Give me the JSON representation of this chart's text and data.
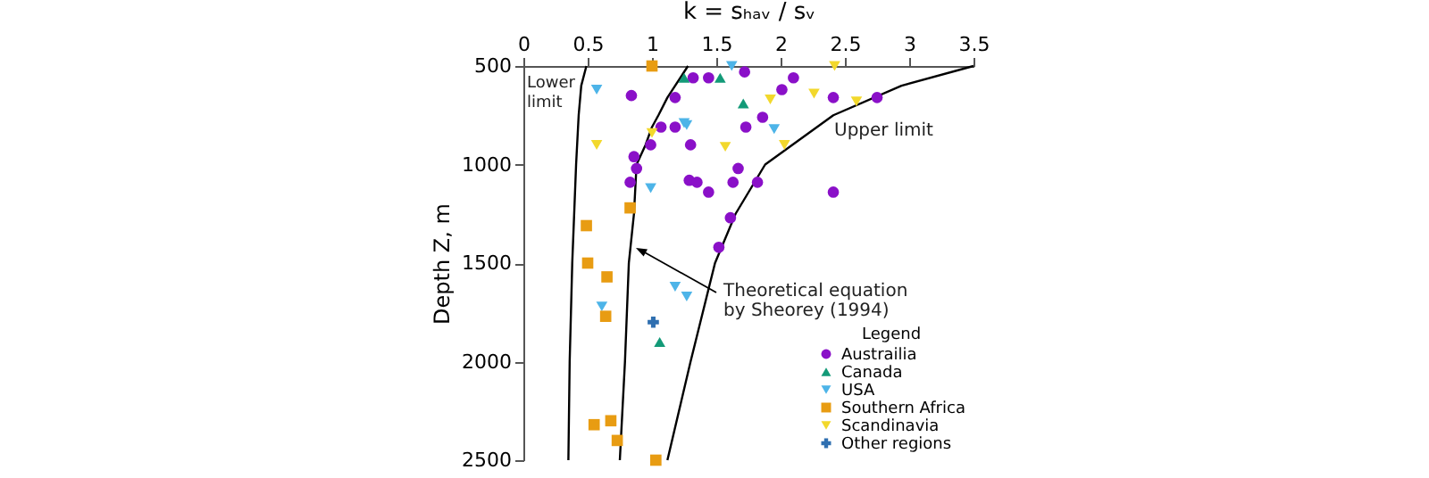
{
  "chart_data": {
    "type": "scatter",
    "xlabel": "k =  sₕₐᵥ / sᵥ",
    "ylabel": "Depth Z, m",
    "legend_title": "Legend",
    "xlim": [
      0,
      3.5
    ],
    "xticks": [
      0,
      0.5,
      1,
      1.5,
      2,
      2.5,
      3,
      3.5
    ],
    "ylim": [
      2500,
      500
    ],
    "yticks": [
      500,
      1000,
      1500,
      2000,
      2500
    ],
    "grid": false,
    "legend": "bottom right",
    "annotations": [
      "Lower\nlimit",
      "Upper limit",
      "Theoretical equation\nby Sheorey (1994)"
    ],
    "series": [
      {
        "name": "Austrailia",
        "color": "#8a10c8",
        "marker": "circle",
        "x": [
          1.32,
          1.44,
          1.72,
          2.1,
          2.01,
          2.41,
          2.75,
          0.84,
          1.18,
          1.86,
          1.07,
          1.18,
          1.73,
          0.99,
          1.3,
          0.86,
          0.88,
          1.67,
          0.83,
          1.29,
          1.35,
          1.63,
          1.82,
          1.44,
          2.41,
          1.61,
          1.52
        ],
        "values": [
          560,
          560,
          530,
          560,
          620,
          660,
          660,
          650,
          660,
          760,
          810,
          810,
          810,
          900,
          900,
          960,
          1020,
          1020,
          1090,
          1080,
          1090,
          1090,
          1090,
          1140,
          1140,
          1270,
          1420
        ]
      },
      {
        "name": "Canada",
        "color": "#139a78",
        "marker": "triangle",
        "x": [
          1.25,
          1.53,
          1.71,
          1.06
        ],
        "values": [
          560,
          560,
          690,
          1900
        ]
      },
      {
        "name": "USA",
        "color": "#4db4e8",
        "marker": "triangle-down",
        "x": [
          1.62,
          0.57,
          1.25,
          1.27,
          1.95,
          0.99,
          1.18,
          1.27,
          0.61
        ],
        "values": [
          500,
          620,
          790,
          800,
          820,
          1120,
          1620,
          1670,
          1720
        ]
      },
      {
        "name": "Southern Africa",
        "color": "#e89c12",
        "marker": "square",
        "x": [
          1.0,
          0.83,
          0.49,
          0.5,
          0.65,
          0.64,
          0.55,
          0.68,
          0.73,
          1.03
        ],
        "values": [
          500,
          1220,
          1310,
          1500,
          1570,
          1770,
          2320,
          2300,
          2400,
          2500
        ]
      },
      {
        "name": "Scandinavia",
        "color": "#f2d82c",
        "marker": "triangle-down",
        "x": [
          2.42,
          0.57,
          1.0,
          1.57,
          2.03,
          1.92,
          2.26,
          2.59
        ],
        "values": [
          500,
          900,
          840,
          910,
          900,
          670,
          640,
          680
        ]
      },
      {
        "name": "Other regions",
        "color": "#2f6fb0",
        "marker": "cross",
        "x": [
          1.01
        ],
        "values": [
          1800
        ]
      },
      {
        "type": "line",
        "color": "#000000",
        "x": [
          0.49,
          0.45,
          0.43,
          0.41,
          0.38,
          0.36,
          0.35
        ],
        "values": [
          500,
          600,
          750,
          1000,
          1500,
          2000,
          2500
        ]
      },
      {
        "type": "line",
        "color": "#000000",
        "x": [
          1.28,
          1.18,
          1.12,
          1.05,
          1.0,
          0.95,
          0.88,
          0.86,
          0.82,
          0.79,
          0.75
        ],
        "values": [
          500,
          600,
          660,
          750,
          810,
          900,
          1000,
          1250,
          1500,
          2000,
          2500
        ]
      },
      {
        "type": "line",
        "color": "#000000",
        "x": [
          3.5,
          2.94,
          2.41,
          1.88,
          1.65,
          1.49,
          1.3,
          1.12
        ],
        "values": [
          500,
          600,
          750,
          1000,
          1250,
          1500,
          2000,
          2500
        ]
      }
    ]
  }
}
